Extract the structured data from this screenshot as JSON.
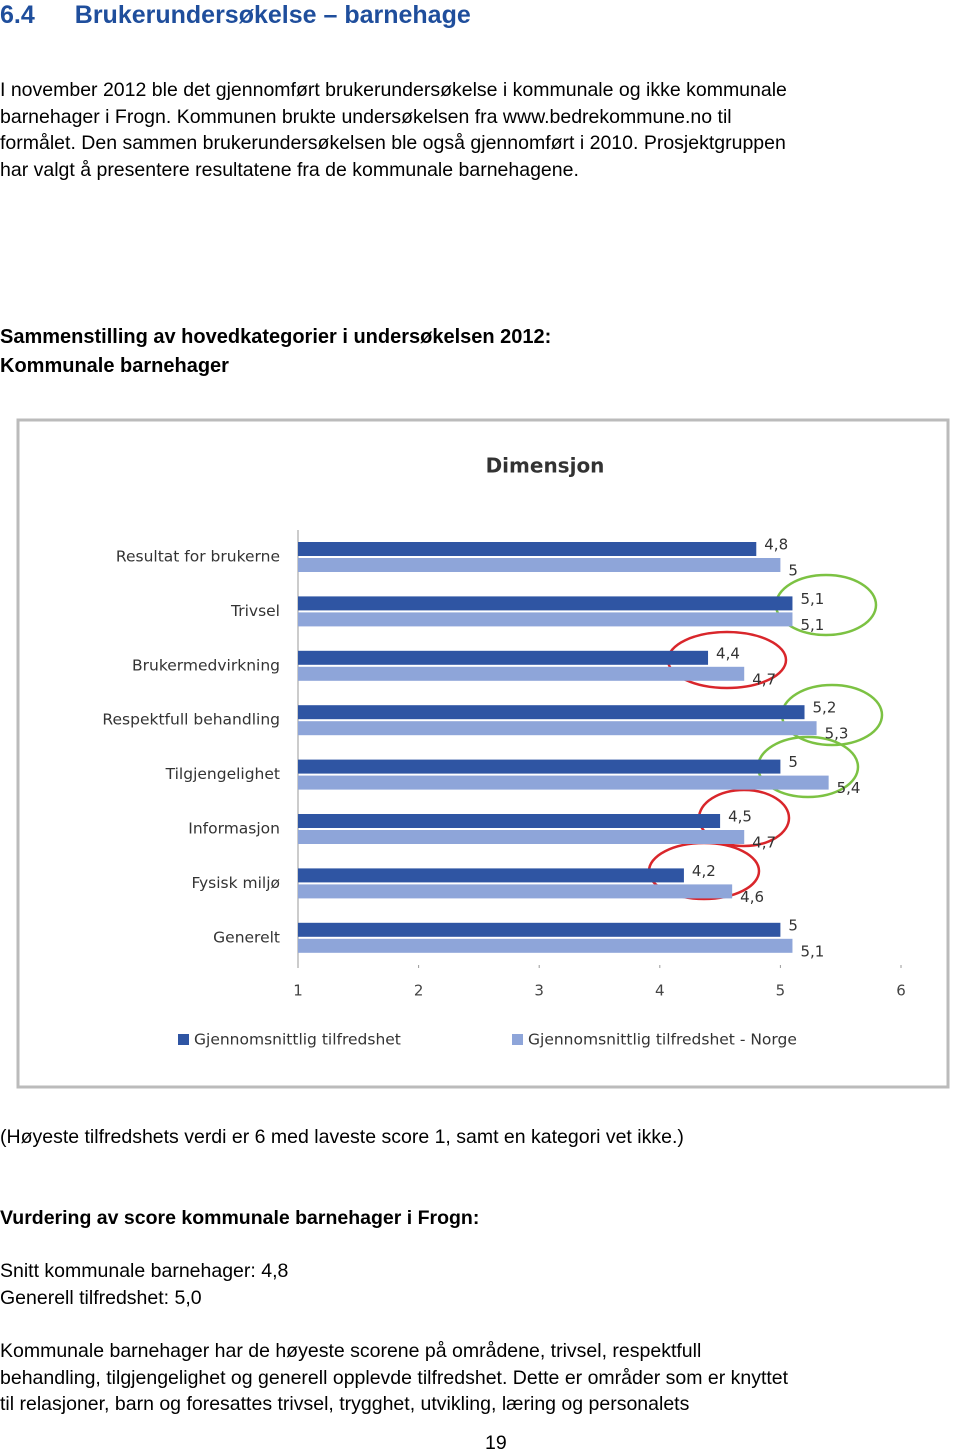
{
  "header": {
    "number": "6.4",
    "title": "Brukerundersøkelse – barnehage"
  },
  "intro": [
    "I november 2012 ble det gjennomført brukerundersøkelse i kommunale og ikke kommunale",
    "barnehager i Frogn. Kommunen brukte undersøkelsen fra www.bedrekommune.no til",
    "formålet. Den sammen brukerundersøkelsen ble også gjennomført i 2010. Prosjektgruppen",
    "har valgt å presentere resultatene fra de kommunale barnehagene."
  ],
  "chart_heading": [
    "Sammenstilling av hovedkategorier i undersøkelsen 2012:",
    "Kommunale barnehager"
  ],
  "chart_data": {
    "type": "bar",
    "orientation": "horizontal",
    "title": "Dimensjon",
    "categories": [
      "Resultat for brukerne",
      "Trivsel",
      "Brukermedvirkning",
      "Respektfull behandling",
      "Tilgjengelighet",
      "Informasjon",
      "Fysisk miljø",
      "Generelt"
    ],
    "series": [
      {
        "name": "Gjennomsnittlig tilfredshet",
        "color": "#2f55a3",
        "values": [
          4.8,
          5.1,
          4.4,
          5.2,
          5,
          4.5,
          4.2,
          5
        ],
        "value_labels": [
          "4,8",
          "5,1",
          "4,4",
          "5,2",
          "5",
          "4,5",
          "4,2",
          "5"
        ]
      },
      {
        "name": "Gjennomsnittlig tilfredshet - Norge",
        "color": "#8ea5d9",
        "values": [
          5,
          5.1,
          4.7,
          5.3,
          5.4,
          4.7,
          4.6,
          5.1
        ],
        "value_labels": [
          "5",
          "5,1",
          "4,7",
          "5,3",
          "5,4",
          "4,7",
          "4,6",
          "5,1"
        ]
      }
    ],
    "xlim": [
      1,
      6
    ],
    "xticks": [
      1,
      2,
      3,
      4,
      5,
      6
    ],
    "legend": "bottom"
  },
  "note": "(Høyeste tilfredshets verdi er 6 med laveste score 1, samt en kategori vet ikke.)",
  "assessment": {
    "title": "Vurdering av score kommunale barnehager i Frogn:",
    "lines": [
      "Snitt kommunale barnehager: 4,8",
      "Generell tilfredshet: 5,0"
    ],
    "paragraph": [
      "Kommunale barnehager har de høyeste scorene på områdene, trivsel, respektfull",
      "behandling, tilgjengelighet og generell opplevde tilfredshet. Dette er områder som er knyttet",
      "til relasjoner, barn og foresattes trivsel, trygghet, utvikling, læring og personalets"
    ]
  },
  "page_number": "19"
}
